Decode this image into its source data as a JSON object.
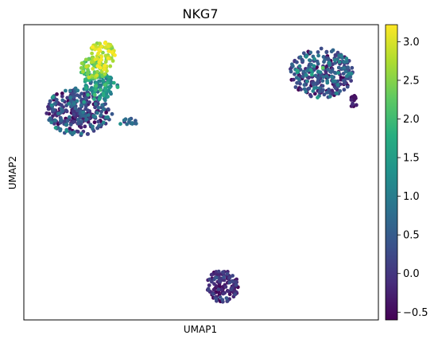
{
  "chart_data": {
    "type": "scatter",
    "title": "NKG7",
    "xlabel": "UMAP1",
    "ylabel": "UMAP2",
    "xlim": [
      0,
      100
    ],
    "ylim": [
      0,
      100
    ],
    "grid": false,
    "colormap": "viridis",
    "colorbar": {
      "range": [
        -0.6,
        3.22
      ],
      "ticks": [
        -0.5,
        0.0,
        0.5,
        1.0,
        1.5,
        2.0,
        2.5,
        3.0
      ],
      "tick_labels": [
        "−0.5",
        "0.0",
        "0.5",
        "1.0",
        "1.5",
        "2.0",
        "2.5",
        "3.0"
      ]
    },
    "clusters": [
      {
        "id": "left-main",
        "cx": 15.5,
        "cy": 70.5,
        "rx": 9.5,
        "ry": 8.0,
        "n": 320,
        "mean": 0.1,
        "spread": 0.6
      },
      {
        "id": "left-teal",
        "cx": 21.5,
        "cy": 79.0,
        "rx": 5.0,
        "ry": 4.5,
        "n": 110,
        "mean": 1.25,
        "spread": 0.45
      },
      {
        "id": "left-green",
        "cx": 19.5,
        "cy": 85.0,
        "rx": 4.0,
        "ry": 4.0,
        "n": 70,
        "mean": 2.2,
        "spread": 0.35
      },
      {
        "id": "left-yellow",
        "cx": 22.0,
        "cy": 89.5,
        "rx": 3.8,
        "ry": 4.8,
        "n": 85,
        "mean": 2.85,
        "spread": 0.3
      },
      {
        "id": "left-tail",
        "cx": 30.0,
        "cy": 67.0,
        "rx": 3.5,
        "ry": 1.2,
        "n": 14,
        "mean": 0.7,
        "spread": 0.4
      },
      {
        "id": "right-main",
        "cx": 84.0,
        "cy": 83.5,
        "rx": 9.0,
        "ry": 8.5,
        "n": 300,
        "mean": 0.2,
        "spread": 0.6
      },
      {
        "id": "right-tail",
        "cx": 93.0,
        "cy": 74.0,
        "rx": 1.0,
        "ry": 2.2,
        "n": 18,
        "mean": -0.4,
        "spread": 0.2
      },
      {
        "id": "bottom",
        "cx": 56.0,
        "cy": 11.5,
        "rx": 4.5,
        "ry": 5.5,
        "n": 130,
        "mean": -0.25,
        "spread": 0.35
      }
    ]
  }
}
